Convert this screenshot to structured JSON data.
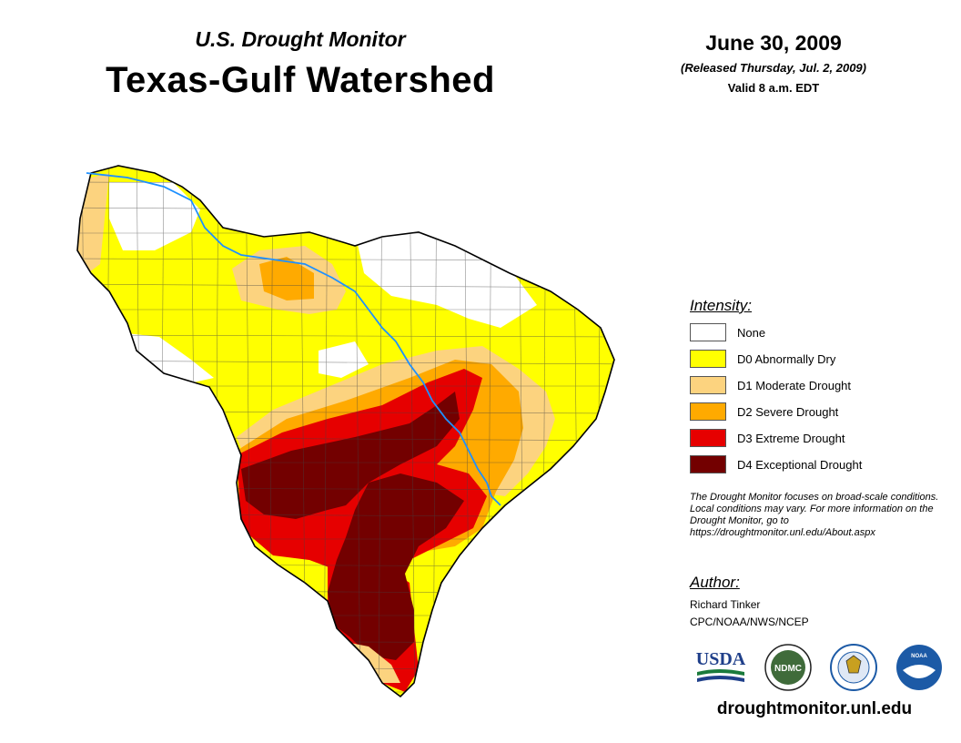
{
  "header": {
    "subtitle": "U.S. Drought Monitor",
    "title": "Texas-Gulf Watershed",
    "date": "June 30, 2009",
    "released": "(Released Thursday, Jul. 2, 2009)",
    "valid": "Valid 8 a.m. EDT"
  },
  "legend": {
    "title": "Intensity:",
    "items": [
      {
        "label": "None",
        "color": "#ffffff"
      },
      {
        "label": "D0 Abnormally Dry",
        "color": "#ffff00"
      },
      {
        "label": "D1 Moderate Drought",
        "color": "#fcd37f"
      },
      {
        "label": "D2 Severe Drought",
        "color": "#ffaa00"
      },
      {
        "label": "D3 Extreme Drought",
        "color": "#e60000"
      },
      {
        "label": "D4 Exceptional Drought",
        "color": "#730000"
      }
    ]
  },
  "note": "The Drought Monitor focuses on broad-scale conditions. Local conditions may vary. For more information on the Drought Monitor, go to https://droughtmonitor.unl.edu/About.aspx",
  "author": {
    "title": "Author:",
    "name": "Richard Tinker",
    "org": "CPC/NOAA/NWS/NCEP"
  },
  "logos": {
    "usda": "USDA",
    "ndmc": "NDMC",
    "noaa": "NOAA"
  },
  "footer": {
    "url": "droughtmonitor.unl.edu"
  },
  "colors": {
    "river": "#1e90ff",
    "usda_green": "#1a7a3c",
    "usda_blue": "#1f3f8a",
    "ndmc_green": "#3f6b3a",
    "noaa_blue": "#1c5aa6"
  }
}
